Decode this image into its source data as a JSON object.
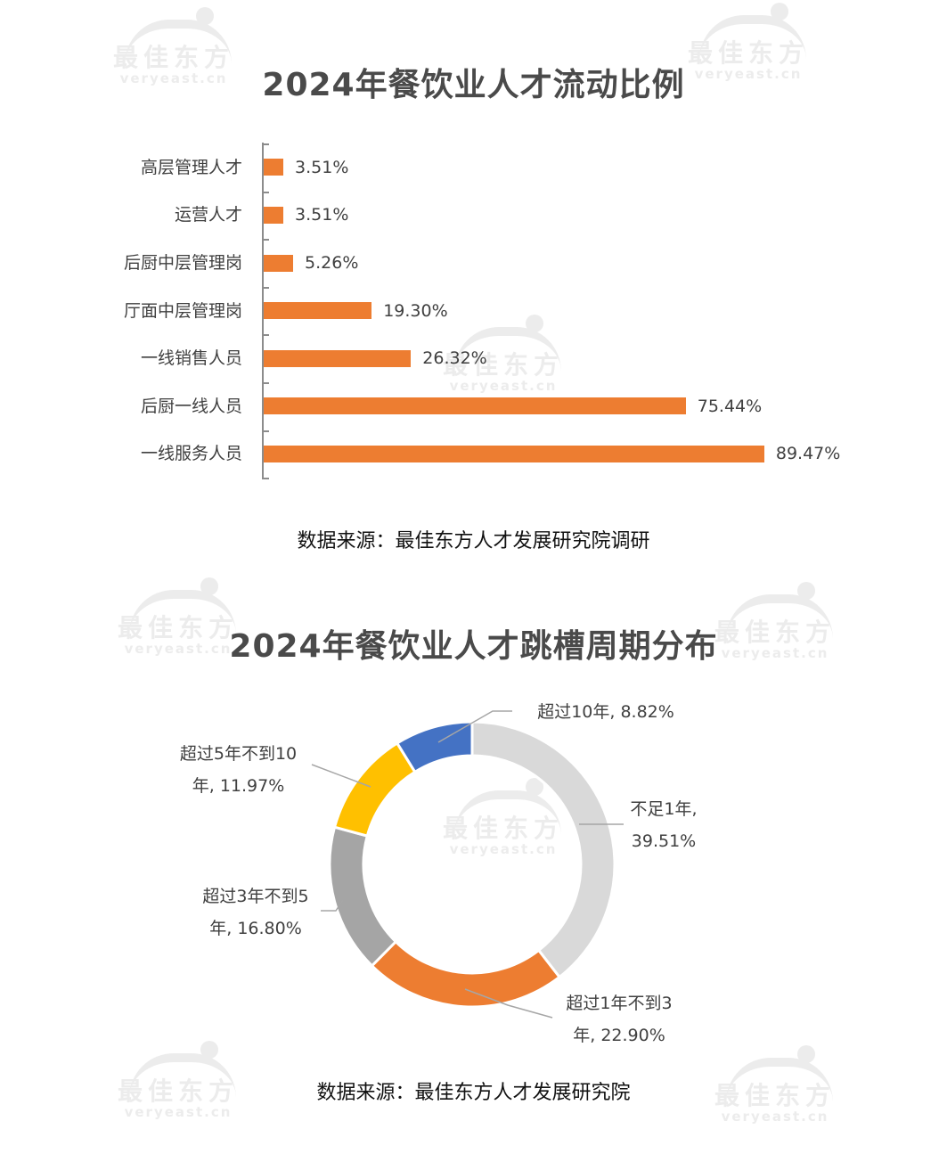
{
  "watermark": {
    "cn": "最佳东方",
    "en": "veryeast.cn"
  },
  "chart1": {
    "title": "2024年餐饮业人才流动比例",
    "source": "数据来源：最佳东方人才发展研究院调研"
  },
  "chart2": {
    "title": "2024年餐饮业人才跳槽周期分布",
    "source": "数据来源：最佳东方人才发展研究院"
  },
  "chart_data": [
    {
      "type": "bar",
      "orientation": "horizontal",
      "title": "2024年餐饮业人才流动比例",
      "categories": [
        "高层管理人才",
        "运营人才",
        "后厨中层管理岗",
        "厅面中层管理岗",
        "一线销售人员",
        "后厨一线人员",
        "一线服务人员"
      ],
      "values": [
        3.51,
        3.51,
        5.26,
        19.3,
        26.32,
        75.44,
        89.47
      ],
      "labels": [
        "3.51%",
        "3.51%",
        "5.26%",
        "19.30%",
        "26.32%",
        "75.44%",
        "89.47%"
      ],
      "unit": "%",
      "color": "#ed7d31",
      "xlabel": "",
      "ylabel": "",
      "grid": false,
      "legend": false,
      "source": "数据来源：最佳东方人才发展研究院调研"
    },
    {
      "type": "pie",
      "variant": "donut",
      "title": "2024年餐饮业人才跳槽周期分布",
      "categories": [
        "不足1年",
        "超过1年不到3年",
        "超过3年不到5年",
        "超过5年不到10年",
        "超过10年"
      ],
      "values": [
        39.51,
        22.9,
        16.8,
        11.97,
        8.82
      ],
      "labels": [
        [
          "不足1年,",
          "39.51%"
        ],
        [
          "超过1年不到3",
          "年, 22.90%"
        ],
        [
          "超过3年不到5",
          "年, 16.80%"
        ],
        [
          "超过5年不到10",
          "年, 11.97%"
        ],
        [
          "超过10年, 8.82%"
        ]
      ],
      "colors": [
        "#d9d9d9",
        "#ed7d31",
        "#a5a5a5",
        "#ffc000",
        "#4472c4"
      ],
      "legend": false,
      "source": "数据来源：最佳东方人才发展研究院"
    }
  ]
}
